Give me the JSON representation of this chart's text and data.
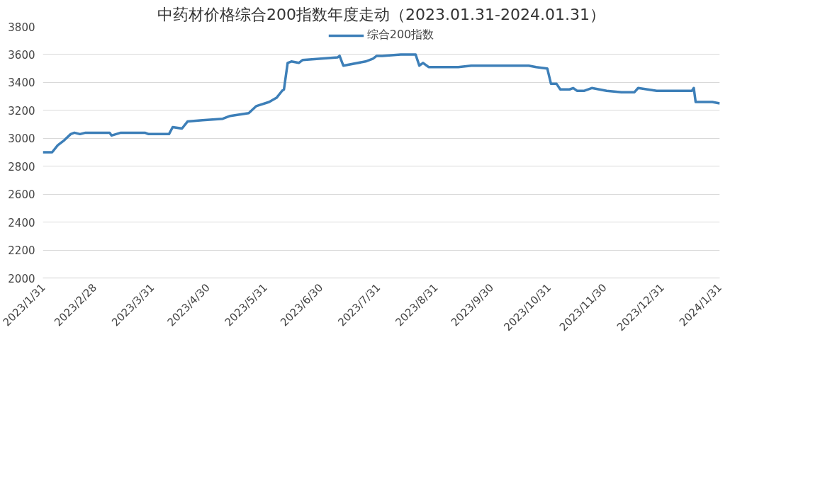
{
  "chart_data": {
    "type": "line",
    "title": "中药材价格综合200指数年度走动（2023.01.31-2024.01.31）",
    "x": [
      "2023-01-31",
      "2023-02-05",
      "2023-02-08",
      "2023-02-11",
      "2023-02-15",
      "2023-02-17",
      "2023-02-20",
      "2023-02-23",
      "2023-03-08",
      "2023-03-09",
      "2023-03-14",
      "2023-03-27",
      "2023-03-29",
      "2023-04-09",
      "2023-04-11",
      "2023-04-16",
      "2023-04-19",
      "2023-04-27",
      "2023-05-08",
      "2023-05-12",
      "2023-05-22",
      "2023-05-26",
      "2023-06-02",
      "2023-06-06",
      "2023-06-09",
      "2023-06-10",
      "2023-06-12",
      "2023-06-14",
      "2023-06-18",
      "2023-06-20",
      "2023-07-09",
      "2023-07-10",
      "2023-07-12",
      "2023-07-24",
      "2023-07-28",
      "2023-07-30",
      "2023-08-02",
      "2023-08-12",
      "2023-08-20",
      "2023-08-21",
      "2023-08-22",
      "2023-08-24",
      "2023-08-27",
      "2023-09-12",
      "2023-09-19",
      "2023-10-20",
      "2023-10-24",
      "2023-10-30",
      "2023-11-01",
      "2023-11-04",
      "2023-11-06",
      "2023-11-11",
      "2023-11-13",
      "2023-11-15",
      "2023-11-19",
      "2023-11-23",
      "2023-12-01",
      "2023-12-09",
      "2023-12-16",
      "2023-12-18",
      "2023-12-28",
      "2024-01-16",
      "2024-01-17",
      "2024-01-18",
      "2024-01-27",
      "2024-01-31"
    ],
    "series": [
      {
        "name": "综合200指数",
        "color": "#3d7fb8",
        "values": [
          2900,
          2900,
          2950,
          2980,
          3030,
          3040,
          3030,
          3040,
          3040,
          3020,
          3040,
          3040,
          3030,
          3030,
          3080,
          3070,
          3120,
          3130,
          3140,
          3160,
          3180,
          3230,
          3260,
          3290,
          3340,
          3350,
          3540,
          3550,
          3540,
          3560,
          3580,
          3590,
          3520,
          3550,
          3570,
          3590,
          3590,
          3600,
          3600,
          3560,
          3520,
          3540,
          3510,
          3510,
          3520,
          3520,
          3510,
          3500,
          3390,
          3390,
          3350,
          3350,
          3360,
          3340,
          3340,
          3360,
          3340,
          3330,
          3330,
          3360,
          3340,
          3340,
          3360,
          3260,
          3260,
          3250
        ]
      }
    ],
    "xlim": [
      "2023-01-31",
      "2024-01-31"
    ],
    "xticks": [
      {
        "value": "2023-01-31",
        "label": "2023/1/31"
      },
      {
        "value": "2023-02-28",
        "label": "2023/2/28"
      },
      {
        "value": "2023-03-31",
        "label": "2023/3/31"
      },
      {
        "value": "2023-04-30",
        "label": "2023/4/30"
      },
      {
        "value": "2023-05-31",
        "label": "2023/5/31"
      },
      {
        "value": "2023-06-30",
        "label": "2023/6/30"
      },
      {
        "value": "2023-07-31",
        "label": "2023/7/31"
      },
      {
        "value": "2023-08-31",
        "label": "2023/8/31"
      },
      {
        "value": "2023-09-30",
        "label": "2023/9/30"
      },
      {
        "value": "2023-10-31",
        "label": "2023/10/31"
      },
      {
        "value": "2023-11-30",
        "label": "2023/11/30"
      },
      {
        "value": "2023-12-31",
        "label": "2023/12/31"
      },
      {
        "value": "2024-01-31",
        "label": "2024/1/31"
      }
    ],
    "ylim": [
      2000,
      3800
    ],
    "yticks": [
      2000,
      2200,
      2400,
      2600,
      2800,
      3000,
      3200,
      3400,
      3600,
      3800
    ],
    "grid": "y",
    "legend": "top",
    "marker": "none",
    "line_style": "solid"
  }
}
